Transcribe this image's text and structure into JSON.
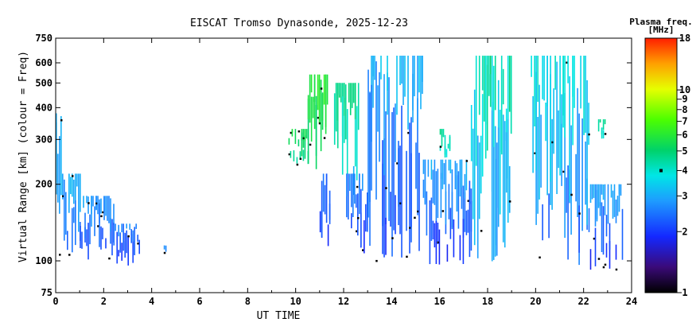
{
  "chart_data": {
    "type": "heatmap",
    "title": "EISCAT Tromso Dynasonde, 2025-12-23",
    "xlabel": "UT TIME",
    "ylabel": "Virtual Range [km] (colour = Freq)",
    "x_ticks": [
      "0",
      "2",
      "4",
      "6",
      "8",
      "10",
      "12",
      "14",
      "16",
      "18",
      "20",
      "22",
      "24"
    ],
    "xlim": [
      0,
      24
    ],
    "y_scale": "log",
    "ylim": [
      75,
      750
    ],
    "y_ticks": [
      "75",
      "100",
      "200",
      "300",
      "400",
      "500",
      "600",
      "750"
    ],
    "colorbar": {
      "title": "Plasma freq.",
      "unit": "[MHz]",
      "scale": "log",
      "range": [
        1,
        18
      ],
      "ticks": [
        "1",
        "2",
        "3",
        "4",
        "5",
        "6",
        "7",
        "8",
        "9",
        "10",
        "18"
      ],
      "marker_value": 4
    },
    "echo_blocks": [
      {
        "t0": 0.0,
        "t1": 0.2,
        "hmin": 100,
        "hmax": 380,
        "fmin": 2.2,
        "fmax": 3.6
      },
      {
        "t0": 0.2,
        "t1": 1.0,
        "hmin": 100,
        "hmax": 220,
        "fmin": 2.0,
        "fmax": 3.4
      },
      {
        "t0": 1.0,
        "t1": 2.4,
        "hmin": 100,
        "hmax": 180,
        "fmin": 1.8,
        "fmax": 3.2
      },
      {
        "t0": 2.4,
        "t1": 3.5,
        "hmin": 95,
        "hmax": 140,
        "fmin": 1.6,
        "fmax": 3.0
      },
      {
        "t0": 4.5,
        "t1": 4.6,
        "hmin": 100,
        "hmax": 115,
        "fmin": 2.4,
        "fmax": 2.8
      },
      {
        "t0": 9.7,
        "t1": 10.5,
        "hmin": 240,
        "hmax": 330,
        "fmin": 4.2,
        "fmax": 6.0
      },
      {
        "t0": 10.5,
        "t1": 11.3,
        "hmin": 220,
        "hmax": 540,
        "fmin": 4.0,
        "fmax": 7.0
      },
      {
        "t0": 11.0,
        "t1": 11.4,
        "hmin": 110,
        "hmax": 220,
        "fmin": 1.7,
        "fmax": 2.8
      },
      {
        "t0": 11.6,
        "t1": 12.6,
        "hmin": 180,
        "hmax": 500,
        "fmin": 2.8,
        "fmax": 5.5
      },
      {
        "t0": 12.1,
        "t1": 13.0,
        "hmin": 100,
        "hmax": 220,
        "fmin": 1.6,
        "fmax": 3.0
      },
      {
        "t0": 13.0,
        "t1": 15.3,
        "hmin": 100,
        "hmax": 640,
        "fmin": 1.7,
        "fmax": 3.6
      },
      {
        "t0": 15.3,
        "t1": 17.3,
        "hmin": 95,
        "hmax": 250,
        "fmin": 1.6,
        "fmax": 3.4
      },
      {
        "t0": 16.0,
        "t1": 16.4,
        "hmin": 250,
        "hmax": 330,
        "fmin": 3.5,
        "fmax": 5.0
      },
      {
        "t0": 17.3,
        "t1": 19.0,
        "hmin": 95,
        "hmax": 640,
        "fmin": 1.8,
        "fmax": 5.5
      },
      {
        "t0": 19.8,
        "t1": 22.2,
        "hmin": 95,
        "hmax": 640,
        "fmin": 1.7,
        "fmax": 4.6
      },
      {
        "t0": 22.2,
        "t1": 23.6,
        "hmin": 90,
        "hmax": 200,
        "fmin": 1.6,
        "fmax": 3.4
      },
      {
        "t0": 22.6,
        "t1": 22.9,
        "hmin": 300,
        "hmax": 360,
        "fmin": 3.6,
        "fmax": 5.0
      }
    ]
  }
}
